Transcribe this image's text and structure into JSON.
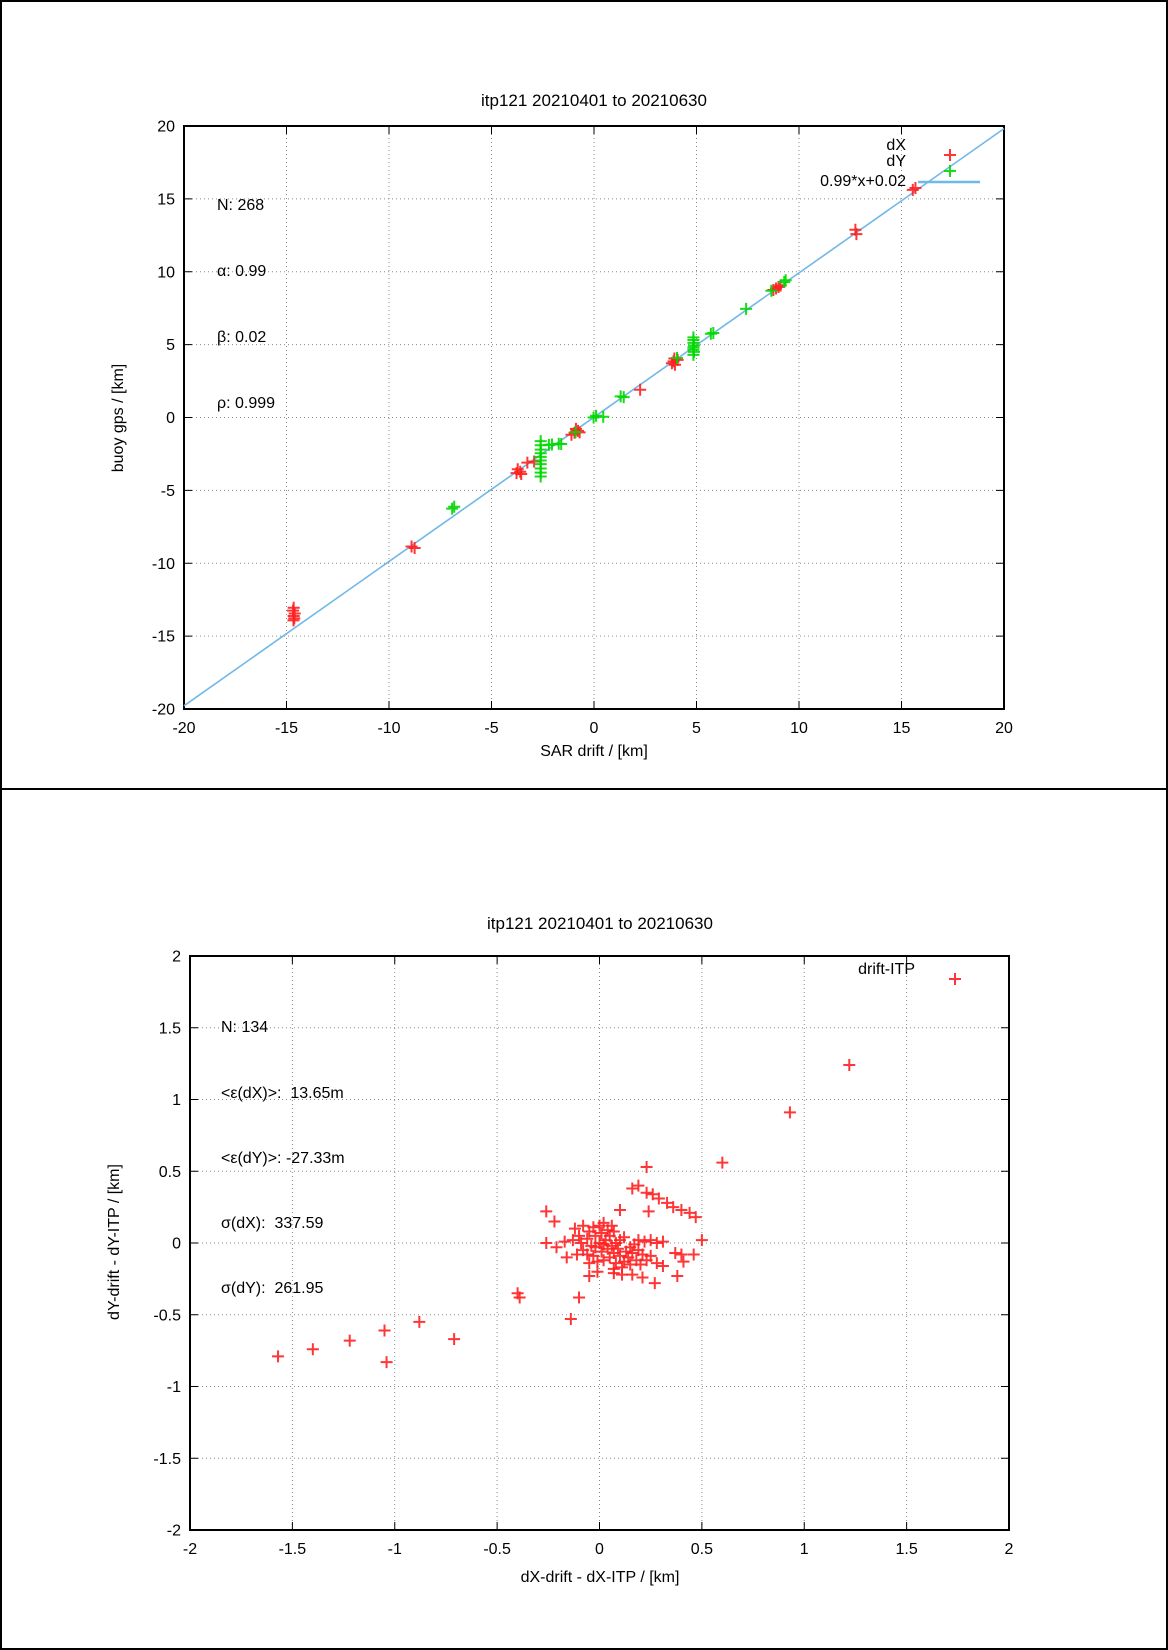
{
  "page": {
    "background": "#ffffff",
    "frame_color": "#000000",
    "grid_color": "#8a8a8a",
    "accent_red": "#ff2020",
    "accent_green": "#00d800",
    "accent_blue": "#70b8e8"
  },
  "chart_data": [
    {
      "type": "scatter",
      "title": "itp121 20210401 to 20210630",
      "xlabel": "SAR drift / [km]",
      "ylabel": "buoy gps / [km]",
      "xlim": [
        -20,
        20
      ],
      "ylim": [
        -20,
        20
      ],
      "xticks": [
        -20,
        -15,
        -10,
        -5,
        0,
        5,
        10,
        15,
        20
      ],
      "yticks": [
        20,
        15,
        10,
        5,
        0,
        -5,
        -10,
        -15,
        -20
      ],
      "grid": true,
      "legend_position": "top-right",
      "annotations": [
        "N: 268",
        "α: 0.99",
        "β: 0.02",
        "ρ: 0.999"
      ],
      "fit_line": {
        "label": "0.99*x+0.02",
        "slope": 0.99,
        "intercept": 0.02,
        "color": "#70b8e8"
      },
      "series": [
        {
          "name": "dX",
          "color": "#ff2020",
          "marker": "plus",
          "points": [
            [
              -14.65,
              -13.05
            ],
            [
              -14.68,
              -13.25
            ],
            [
              -14.6,
              -13.45
            ],
            [
              -14.65,
              -13.62
            ],
            [
              -14.62,
              -13.78
            ],
            [
              -14.66,
              -13.92
            ],
            [
              -8.9,
              -8.85
            ],
            [
              -8.75,
              -8.95
            ],
            [
              -3.72,
              -3.55
            ],
            [
              -3.6,
              -3.72
            ],
            [
              -3.55,
              -3.88
            ],
            [
              -3.78,
              -3.82
            ],
            [
              -3.25,
              -3.1
            ],
            [
              -2.92,
              -3.02
            ],
            [
              -1.1,
              -1.18
            ],
            [
              -0.95,
              -1.05
            ],
            [
              -0.78,
              -0.92
            ],
            [
              -0.7,
              -1.02
            ],
            [
              -0.88,
              -0.78
            ],
            [
              2.25,
              1.9
            ],
            [
              3.88,
              3.85
            ],
            [
              4.08,
              3.95
            ],
            [
              3.95,
              3.62
            ],
            [
              3.8,
              3.72
            ],
            [
              3.92,
              4.05
            ],
            [
              8.75,
              8.75
            ],
            [
              8.88,
              8.85
            ],
            [
              9.0,
              8.95
            ],
            [
              9.1,
              9.05
            ],
            [
              12.75,
              12.88
            ],
            [
              12.8,
              12.58
            ],
            [
              15.55,
              15.62
            ],
            [
              15.68,
              15.75
            ]
          ]
        },
        {
          "name": "dY",
          "color": "#00d800",
          "marker": "plus",
          "points": [
            [
              -6.82,
              -6.12
            ],
            [
              -6.92,
              -6.25
            ],
            [
              -2.6,
              -1.62
            ],
            [
              -2.6,
              -1.9
            ],
            [
              -2.6,
              -2.2
            ],
            [
              -2.6,
              -2.45
            ],
            [
              -2.6,
              -2.7
            ],
            [
              -2.6,
              -2.95
            ],
            [
              -2.6,
              -3.2
            ],
            [
              -2.6,
              -3.5
            ],
            [
              -2.6,
              -3.78
            ],
            [
              -2.6,
              -4.05
            ],
            [
              -2.2,
              -1.88
            ],
            [
              -2.05,
              -1.85
            ],
            [
              -1.72,
              -1.8
            ],
            [
              -1.6,
              -1.82
            ],
            [
              -0.9,
              -1.0
            ],
            [
              -0.02,
              0.0
            ],
            [
              0.45,
              0.05
            ],
            [
              0.1,
              0.12
            ],
            [
              1.3,
              1.45
            ],
            [
              1.45,
              1.4
            ],
            [
              4.05,
              4.08
            ],
            [
              4.85,
              5.5
            ],
            [
              4.85,
              5.32
            ],
            [
              4.85,
              5.12
            ],
            [
              4.88,
              4.95
            ],
            [
              4.85,
              4.8
            ],
            [
              4.85,
              4.65
            ],
            [
              4.88,
              4.5
            ],
            [
              4.85,
              4.3
            ],
            [
              5.7,
              5.75
            ],
            [
              5.82,
              5.8
            ],
            [
              7.42,
              7.45
            ],
            [
              8.65,
              8.7
            ],
            [
              9.28,
              9.3
            ],
            [
              9.35,
              9.42
            ]
          ]
        }
      ]
    },
    {
      "type": "scatter",
      "title": "itp121 20210401 to 20210630",
      "xlabel": "dX-drift - dX-ITP / [km]",
      "ylabel": "dY-drift - dY-ITP / [km]",
      "xlim": [
        -2,
        2
      ],
      "ylim": [
        -2,
        2
      ],
      "xticks": [
        -2,
        -1.5,
        -1,
        -0.5,
        0,
        0.5,
        1,
        1.5,
        2
      ],
      "yticks": [
        2,
        1.5,
        1,
        0.5,
        0,
        -0.5,
        -1,
        -1.5,
        -2
      ],
      "grid": true,
      "legend_position": "top-right",
      "annotations": [
        "N: 134",
        "<ε(dX)>:  13.65m",
        "<ε(dY)>: -27.33m",
        "σ(dX):  337.59",
        "σ(dY):  261.95"
      ],
      "series": [
        {
          "name": "drift-ITP",
          "color": "#ff2020",
          "marker": "plus",
          "points": [
            [
              1.22,
              1.24
            ],
            [
              0.93,
              0.91
            ],
            [
              0.6,
              0.56
            ],
            [
              0.23,
              0.53
            ],
            [
              0.16,
              0.38
            ],
            [
              0.19,
              0.4
            ],
            [
              0.23,
              0.35
            ],
            [
              0.26,
              0.34
            ],
            [
              0.29,
              0.31
            ],
            [
              0.33,
              0.28
            ],
            [
              0.36,
              0.25
            ],
            [
              0.4,
              0.23
            ],
            [
              0.44,
              0.21
            ],
            [
              0.47,
              0.18
            ],
            [
              -0.26,
              0.22
            ],
            [
              -0.22,
              0.15
            ],
            [
              0.1,
              0.23
            ],
            [
              0.24,
              0.22
            ],
            [
              -0.26,
              0.0
            ],
            [
              -0.21,
              -0.03
            ],
            [
              -0.16,
              -0.1
            ],
            [
              -0.17,
              0.01
            ],
            [
              0.19,
              0.02
            ],
            [
              0.22,
              0.01
            ],
            [
              0.25,
              0.02
            ],
            [
              0.28,
              0.0
            ],
            [
              0.31,
              0.01
            ],
            [
              0.5,
              0.02
            ],
            [
              -0.12,
              0.1
            ],
            [
              -0.08,
              0.12
            ],
            [
              -0.1,
              0.05
            ],
            [
              -0.05,
              0.08
            ],
            [
              -0.03,
              0.11
            ],
            [
              0.0,
              0.12
            ],
            [
              0.02,
              0.14
            ],
            [
              -0.13,
              0.02
            ],
            [
              -0.09,
              0.0
            ],
            [
              -0.06,
              0.03
            ],
            [
              -0.02,
              0.05
            ],
            [
              0.01,
              0.07
            ],
            [
              0.04,
              0.09
            ],
            [
              0.06,
              0.12
            ],
            [
              0.03,
              0.02
            ],
            [
              0.05,
              0.05
            ],
            [
              0.07,
              0.08
            ],
            [
              0.0,
              0.0
            ],
            [
              -0.04,
              -0.02
            ],
            [
              -0.08,
              -0.05
            ],
            [
              -0.11,
              -0.08
            ],
            [
              -0.06,
              -0.08
            ],
            [
              -0.02,
              -0.03
            ],
            [
              0.02,
              -0.01
            ],
            [
              0.04,
              -0.04
            ],
            [
              0.01,
              -0.06
            ],
            [
              -0.03,
              -0.09
            ],
            [
              0.06,
              -0.02
            ],
            [
              0.08,
              0.0
            ],
            [
              0.1,
              0.02
            ],
            [
              0.12,
              0.04
            ],
            [
              0.09,
              -0.04
            ],
            [
              0.07,
              -0.07
            ],
            [
              0.05,
              -0.1
            ],
            [
              0.02,
              -0.12
            ],
            [
              -0.01,
              -0.13
            ],
            [
              -0.05,
              -0.14
            ],
            [
              0.1,
              -0.09
            ],
            [
              0.13,
              -0.06
            ],
            [
              0.15,
              -0.03
            ],
            [
              0.17,
              -0.01
            ],
            [
              0.14,
              -0.1
            ],
            [
              0.12,
              -0.13
            ],
            [
              0.08,
              -0.14
            ],
            [
              0.16,
              -0.07
            ],
            [
              0.19,
              -0.05
            ],
            [
              0.21,
              -0.08
            ],
            [
              0.18,
              -0.12
            ],
            [
              0.15,
              -0.15
            ],
            [
              0.11,
              -0.17
            ],
            [
              0.07,
              -0.18
            ],
            [
              0.2,
              -0.15
            ],
            [
              0.23,
              -0.12
            ],
            [
              0.25,
              -0.09
            ],
            [
              -0.05,
              -0.23
            ],
            [
              0.07,
              -0.21
            ],
            [
              0.11,
              -0.22
            ],
            [
              0.16,
              -0.22
            ],
            [
              0.21,
              -0.24
            ],
            [
              0.27,
              -0.28
            ],
            [
              -0.01,
              -0.2
            ],
            [
              0.37,
              -0.07
            ],
            [
              0.4,
              -0.08
            ],
            [
              0.46,
              -0.08
            ],
            [
              0.41,
              -0.13
            ],
            [
              0.38,
              -0.23
            ],
            [
              0.28,
              -0.14
            ],
            [
              0.31,
              -0.16
            ],
            [
              -0.39,
              -0.38
            ],
            [
              -0.1,
              -0.38
            ],
            [
              -0.14,
              -0.53
            ],
            [
              -1.57,
              -0.79
            ],
            [
              -1.4,
              -0.74
            ],
            [
              -1.22,
              -0.68
            ],
            [
              -1.05,
              -0.61
            ],
            [
              -1.04,
              -0.83
            ],
            [
              -0.88,
              -0.55
            ],
            [
              -0.71,
              -0.67
            ],
            [
              -0.4,
              -0.35
            ]
          ]
        }
      ]
    }
  ]
}
